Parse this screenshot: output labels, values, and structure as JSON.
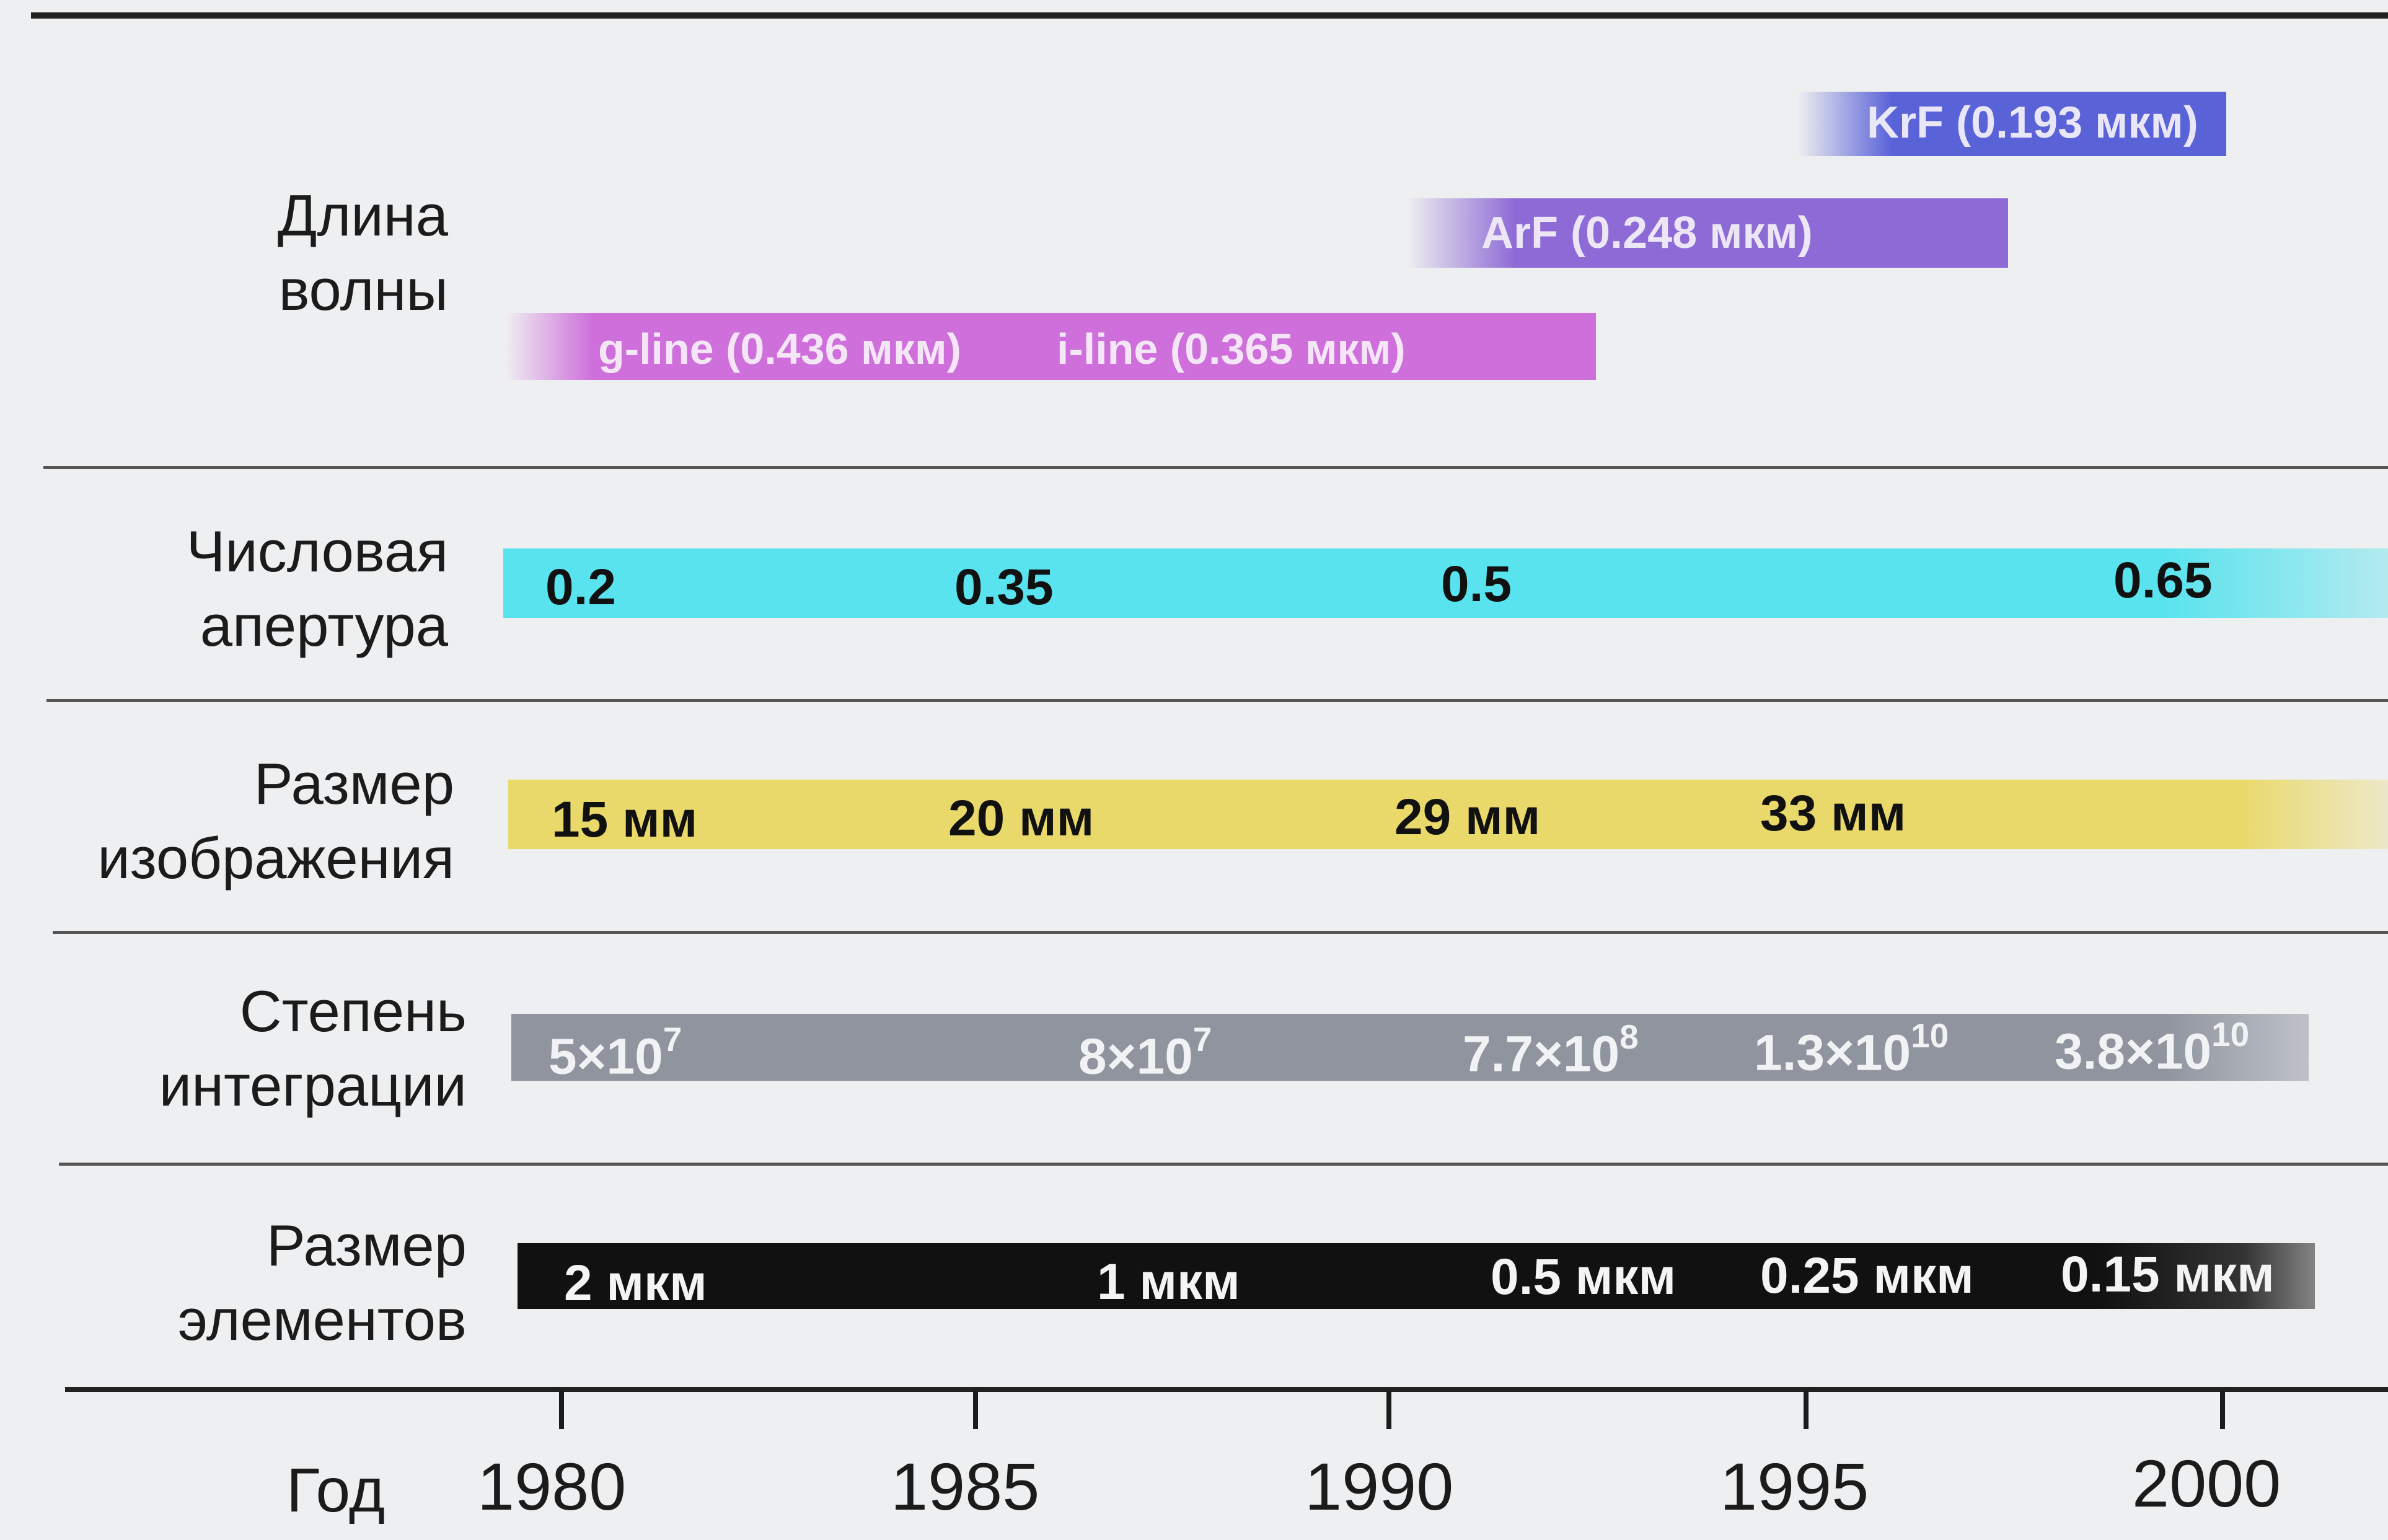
{
  "axis": {
    "label": "Год",
    "years": [
      "1980",
      "1985",
      "1990",
      "1995",
      "2000"
    ]
  },
  "rows": [
    {
      "label": "Длина\nволны",
      "bars": [
        {
          "name": "krf",
          "color": "#5a62d8",
          "items": [
            "KrF (0.193 мкм)"
          ]
        },
        {
          "name": "arf",
          "color": "#8e6ad6",
          "items": [
            "ArF (0.248 мкм)"
          ]
        },
        {
          "name": "gline",
          "color": "#cf6fdc",
          "items": [
            "g-line (0.436 мкм)",
            "i-line (0.365 мкм)"
          ]
        }
      ]
    },
    {
      "label": "Числовая\nапертура",
      "color": "#58e3ee",
      "items": [
        "0.2",
        "0.35",
        "0.5",
        "0.65"
      ]
    },
    {
      "label": "Размер\nизображения",
      "color": "#e9d96a",
      "items": [
        "15 мм",
        "20 мм",
        "29 мм",
        "33 мм"
      ]
    },
    {
      "label": "Степень\nинтеграции",
      "color": "#8f949f",
      "items": [
        {
          "mant": "5×10",
          "exp": "7"
        },
        {
          "mant": "8×10",
          "exp": "7"
        },
        {
          "mant": "7.7×10",
          "exp": "8"
        },
        {
          "mant": "1.3×10",
          "exp": "10"
        },
        {
          "mant": "3.8×10",
          "exp": "10"
        }
      ]
    },
    {
      "label": "Размер\nэлементов",
      "color": "#111111",
      "items": [
        "2 мкм",
        "1 мкм",
        "0.5 мкм",
        "0.25 мкм",
        "0.15 мкм"
      ]
    }
  ]
}
